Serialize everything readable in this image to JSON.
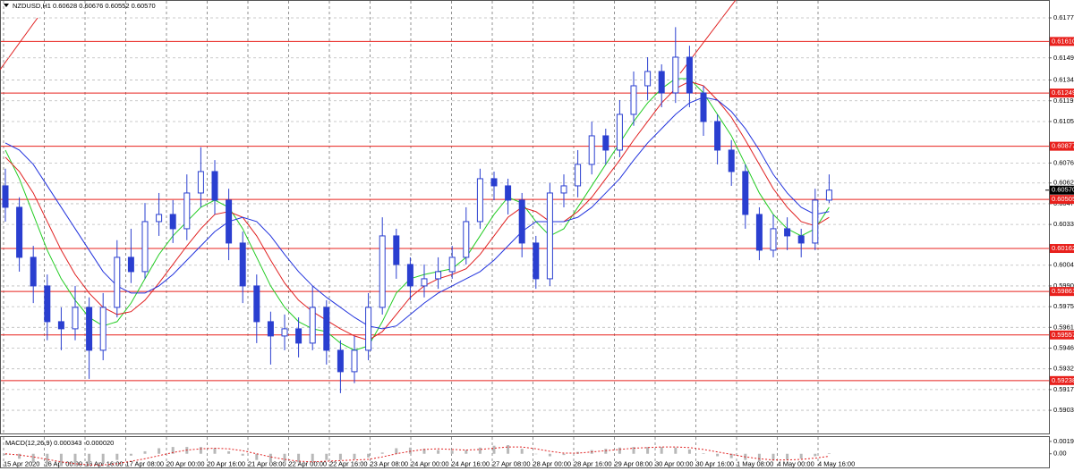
{
  "chart_data": {
    "type": "candlestick",
    "title": "NZDUSD,H1  0.60628 0.60676 0.60552 0.60570",
    "color": "#2a3fd0",
    "open": [
      0.606,
      0.6045,
      0.601,
      0.599,
      0.5965,
      0.596,
      0.5975,
      0.5945,
      0.5975,
      0.601,
      0.6,
      0.6035,
      0.604,
      0.603,
      0.6055,
      0.607,
      0.605,
      0.602,
      0.599,
      0.5965,
      0.5955,
      0.596,
      0.595,
      0.5975,
      0.5945,
      0.593,
      0.5945,
      0.5975,
      0.6025,
      0.6005,
      0.599,
      0.5995,
      0.6,
      0.601,
      0.6035,
      0.6065,
      0.606,
      0.605,
      0.602,
      0.5995,
      0.6055,
      0.606,
      0.6075,
      0.6095,
      0.6085,
      0.611,
      0.613,
      0.614,
      0.6125,
      0.615,
      0.6125,
      0.6105,
      0.6085,
      0.607,
      0.604,
      0.6015,
      0.603,
      0.6025,
      0.602,
      0.605
    ],
    "high": [
      0.6072,
      0.6052,
      0.6018,
      0.5998,
      0.5975,
      0.599,
      0.5982,
      0.5985,
      0.6022,
      0.603,
      0.6048,
      0.6055,
      0.605,
      0.6068,
      0.6087,
      0.6078,
      0.6058,
      0.6028,
      0.5998,
      0.5972,
      0.597,
      0.5968,
      0.599,
      0.598,
      0.5952,
      0.5955,
      0.5985,
      0.6038,
      0.603,
      0.601,
      0.6005,
      0.601,
      0.6018,
      0.6045,
      0.6072,
      0.607,
      0.6065,
      0.6055,
      0.6025,
      0.6062,
      0.6068,
      0.6085,
      0.6105,
      0.61,
      0.612,
      0.614,
      0.615,
      0.6145,
      0.6171,
      0.6158,
      0.613,
      0.611,
      0.6092,
      0.6075,
      0.6045,
      0.604,
      0.6038,
      0.603,
      0.6058,
      0.6068
    ],
    "low": [
      0.6035,
      0.6,
      0.5978,
      0.5952,
      0.5945,
      0.5952,
      0.5925,
      0.5938,
      0.5968,
      0.5992,
      0.5995,
      0.6025,
      0.602,
      0.6022,
      0.6045,
      0.604,
      0.6008,
      0.5978,
      0.595,
      0.5935,
      0.5945,
      0.594,
      0.5945,
      0.5935,
      0.5915,
      0.5922,
      0.5938,
      0.597,
      0.5995,
      0.598,
      0.5982,
      0.5988,
      0.5995,
      0.6005,
      0.603,
      0.605,
      0.604,
      0.601,
      0.5988,
      0.599,
      0.6045,
      0.6052,
      0.6068,
      0.6075,
      0.608,
      0.6102,
      0.612,
      0.6115,
      0.6118,
      0.6115,
      0.6095,
      0.6075,
      0.606,
      0.603,
      0.6008,
      0.601,
      0.6015,
      0.601,
      0.6015,
      0.6048
    ],
    "close": [
      0.6045,
      0.601,
      0.599,
      0.5965,
      0.596,
      0.5975,
      0.5945,
      0.5975,
      0.601,
      0.6,
      0.6035,
      0.604,
      0.603,
      0.6055,
      0.607,
      0.605,
      0.602,
      0.599,
      0.5965,
      0.5955,
      0.596,
      0.595,
      0.5975,
      0.5945,
      0.593,
      0.5945,
      0.5975,
      0.6025,
      0.6005,
      0.599,
      0.5995,
      0.6,
      0.601,
      0.6035,
      0.6065,
      0.606,
      0.605,
      0.602,
      0.5995,
      0.6055,
      0.606,
      0.6075,
      0.6095,
      0.6085,
      0.611,
      0.613,
      0.614,
      0.6125,
      0.615,
      0.6125,
      0.6105,
      0.6085,
      0.607,
      0.604,
      0.6015,
      0.603,
      0.6025,
      0.602,
      0.605,
      0.6057
    ],
    "overlays": [
      {
        "color": "#22cc22",
        "values": [
          0.6085,
          0.6065,
          0.604,
          0.6015,
          0.5995,
          0.598,
          0.5968,
          0.5962,
          0.5965,
          0.5978,
          0.5995,
          0.6012,
          0.6025,
          0.6035,
          0.6045,
          0.605,
          0.6045,
          0.603,
          0.601,
          0.599,
          0.5975,
          0.5965,
          0.596,
          0.5958,
          0.595,
          0.5945,
          0.5948,
          0.5965,
          0.5985,
          0.5995,
          0.5998,
          0.6,
          0.6002,
          0.601,
          0.6025,
          0.604,
          0.6052,
          0.6048,
          0.6035,
          0.6025,
          0.603,
          0.6045,
          0.606,
          0.6075,
          0.609,
          0.6105,
          0.6118,
          0.6128,
          0.6135,
          0.6135,
          0.6125,
          0.611,
          0.6095,
          0.6075,
          0.6055,
          0.604,
          0.603,
          0.6025,
          0.603,
          0.6045
        ]
      },
      {
        "color": "#e02020",
        "values": [
          0.608,
          0.607,
          0.6055,
          0.6035,
          0.6015,
          0.5998,
          0.5985,
          0.5975,
          0.597,
          0.5972,
          0.598,
          0.5992,
          0.6005,
          0.6018,
          0.603,
          0.604,
          0.6042,
          0.6038,
          0.6025,
          0.6008,
          0.5992,
          0.598,
          0.5972,
          0.5966,
          0.596,
          0.5955,
          0.5952,
          0.5958,
          0.597,
          0.5982,
          0.599,
          0.5995,
          0.5998,
          0.6002,
          0.6012,
          0.6025,
          0.6038,
          0.6045,
          0.6042,
          0.6035,
          0.6035,
          0.6042,
          0.6052,
          0.6065,
          0.6078,
          0.6092,
          0.6105,
          0.6118,
          0.6128,
          0.6133,
          0.613,
          0.612,
          0.6108,
          0.6092,
          0.6075,
          0.6058,
          0.6045,
          0.6035,
          0.6032,
          0.6038
        ]
      },
      {
        "color": "#2233dd",
        "values": [
          0.609,
          0.6085,
          0.6075,
          0.606,
          0.6045,
          0.603,
          0.6015,
          0.6,
          0.599,
          0.5985,
          0.5985,
          0.599,
          0.5998,
          0.6008,
          0.6018,
          0.6028,
          0.6035,
          0.6038,
          0.6035,
          0.6025,
          0.6012,
          0.6,
          0.599,
          0.5982,
          0.5975,
          0.5968,
          0.5962,
          0.596,
          0.5962,
          0.597,
          0.5978,
          0.5985,
          0.599,
          0.5995,
          0.6,
          0.6008,
          0.6018,
          0.6028,
          0.6035,
          0.6035,
          0.6035,
          0.6038,
          0.6045,
          0.6055,
          0.6065,
          0.6078,
          0.609,
          0.61,
          0.611,
          0.6118,
          0.6122,
          0.612,
          0.6112,
          0.61,
          0.6085,
          0.6068,
          0.6055,
          0.6045,
          0.604,
          0.6042
        ]
      }
    ],
    "ylim": [
      0.58868,
      0.619
    ],
    "yticks": [
      0.61775,
      0.61495,
      {
        "value": 0.6134,
        "label": "0.61340"
      },
      0.61195,
      {
        "value": 0.6105,
        "label": "0.61050"
      },
      {
        "value": 0.6076,
        "label": "0.60760"
      },
      {
        "value": 0.6062,
        "label": "0.60620"
      },
      0.60475,
      {
        "value": 0.6033,
        "label": "0.60330"
      },
      0.60045,
      {
        "value": 0.599,
        "label": "0.59900"
      },
      0.59755,
      {
        "value": 0.5961,
        "label": "0.59610"
      },
      0.59465,
      {
        "value": 0.5932,
        "label": "0.59320"
      },
      0.59175,
      {
        "value": 0.5903,
        "label": "0.59030"
      }
    ],
    "levels": [
      {
        "value": 0.6161,
        "label": "0.61610"
      },
      0.61249,
      0.60877,
      0.60505,
      0.60162,
      0.59861,
      0.59557,
      0.59238
    ],
    "level_color": "#e8201c",
    "current": {
      "value": 0.6057,
      "label": "0.60570"
    },
    "grid": true,
    "x_labels": [
      "15 Apr 2020",
      "16 Apr 00:00",
      "16 Apr 16:00",
      "17 Apr 08:00",
      "20 Apr 00:00",
      "20 Apr 16:00",
      "21 Apr 08:00",
      "22 Apr 00:00",
      "22 Apr 16:00",
      "23 Apr 08:00",
      "24 Apr 00:00",
      "24 Apr 16:00",
      "27 Apr 08:00",
      "28 Apr 00:00",
      "28 Apr 16:00",
      "29 Apr 08:00",
      "30 Apr 00:00",
      "30 Apr 16:00",
      "1 May 08:00",
      "4 May 00:00",
      "4 May 16:00"
    ],
    "macd": {
      "label": "MACD(12,26,9) 0.000343 -0.000020",
      "ylim": [
        -0.0022,
        0.0027
      ],
      "yticks": [
        0.001994,
        {
          "value": 0,
          "label": "0.00"
        }
      ],
      "histogram": {
        "color": "#b8b8b8",
        "values": [
          -0.0002,
          -0.0008,
          -0.0014,
          -0.0018,
          -0.002,
          -0.002,
          -0.0019,
          -0.0015,
          -0.001,
          -0.0003,
          0.0004,
          0.0009,
          0.0011,
          0.0011,
          0.0011,
          0.0009,
          0.0004,
          -0.0003,
          -0.001,
          -0.0014,
          -0.0015,
          -0.0014,
          -0.0012,
          -0.001,
          -0.001,
          -0.0009,
          -0.0006,
          0.0002,
          0.0009,
          0.001,
          0.0008,
          0.0006,
          0.0005,
          0.0006,
          0.001,
          0.0013,
          0.0014,
          0.0008,
          0.0,
          -0.0004,
          -0.0002,
          0.0003,
          0.0006,
          0.0008,
          0.001,
          0.0011,
          0.0011,
          0.0011,
          0.001,
          0.0007,
          0.0001,
          -0.0004,
          -0.0007,
          -0.001,
          -0.0012,
          -0.0011,
          -0.001,
          -0.0008,
          -0.0004,
          0.0001
        ]
      },
      "signal": {
        "color": "#e02020",
        "values": [
          0.0,
          -0.0002,
          -0.0005,
          -0.0009,
          -0.0013,
          -0.0016,
          -0.0018,
          -0.0018,
          -0.0016,
          -0.0012,
          -0.0008,
          -0.0003,
          0.0002,
          0.0006,
          0.0008,
          0.0009,
          0.0008,
          0.0005,
          0.0,
          -0.0005,
          -0.0009,
          -0.0012,
          -0.0013,
          -0.0012,
          -0.0011,
          -0.001,
          -0.0009,
          -0.0005,
          0.0,
          0.0004,
          0.0007,
          0.0008,
          0.0007,
          0.0006,
          0.0007,
          0.0009,
          0.0011,
          0.0011,
          0.0008,
          0.0004,
          0.0001,
          0.0001,
          0.0003,
          0.0005,
          0.0007,
          0.0009,
          0.001,
          0.0011,
          0.0011,
          0.001,
          0.0007,
          0.0003,
          -0.0001,
          -0.0005,
          -0.0008,
          -0.001,
          -0.001,
          -0.0009,
          -0.0007,
          -0.0004
        ]
      }
    }
  }
}
